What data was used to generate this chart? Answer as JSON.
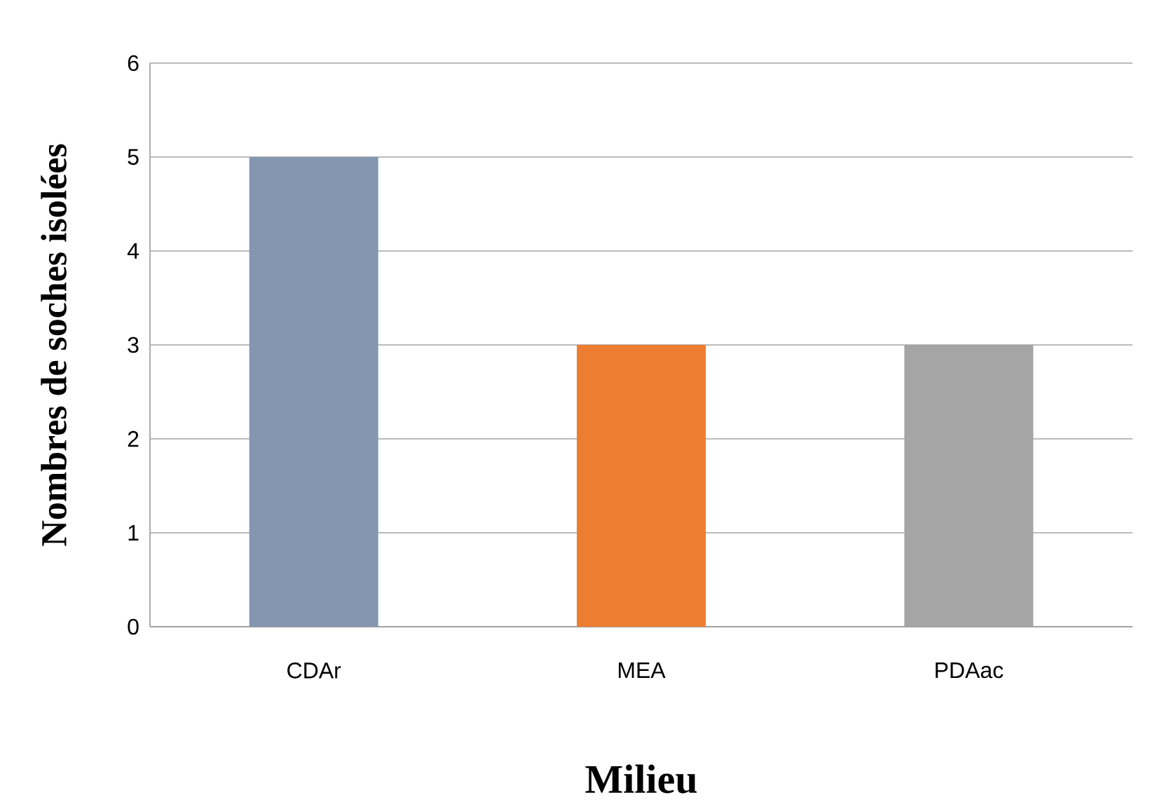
{
  "chart_data": {
    "type": "bar",
    "xlabel": "Milieu",
    "ylabel": "Nombres de soches isolées",
    "categories": [
      "CDAr",
      "MEA",
      "PDAac"
    ],
    "values": [
      5,
      3,
      3
    ],
    "colors": [
      "#8497b0",
      "#ed7d31",
      "#a5a5a5"
    ],
    "ylim": [
      0,
      6
    ],
    "yticks": [
      0,
      1,
      2,
      3,
      4,
      5,
      6
    ],
    "grid": "y"
  }
}
